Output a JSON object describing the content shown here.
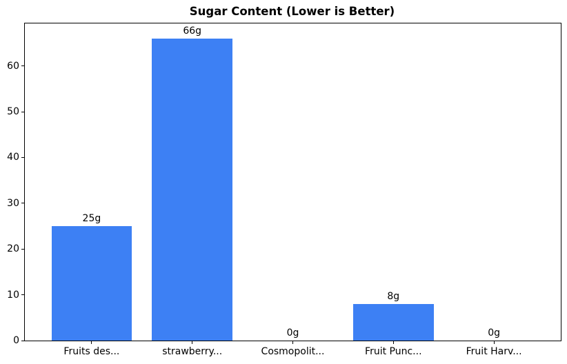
{
  "chart_data": {
    "type": "bar",
    "title": "Sugar Content (Lower is Better)",
    "categories": [
      "Fruits des...",
      "strawberry...",
      "Cosmopolit...",
      "Fruit Punc...",
      "Fruit Harv..."
    ],
    "values": [
      25,
      66,
      0,
      8,
      0
    ],
    "value_labels": [
      "25g",
      "66g",
      "0g",
      "8g",
      "0g"
    ],
    "xlabel": "",
    "ylabel": "",
    "yticks": [
      0,
      10,
      20,
      30,
      40,
      50,
      60
    ],
    "ylim": [
      0,
      69.3
    ],
    "grid": false,
    "legend": "none",
    "bar_color": "#3d80f4",
    "axis_color": "#000000",
    "text_color": "#000000",
    "background_color": "#ffffff"
  }
}
